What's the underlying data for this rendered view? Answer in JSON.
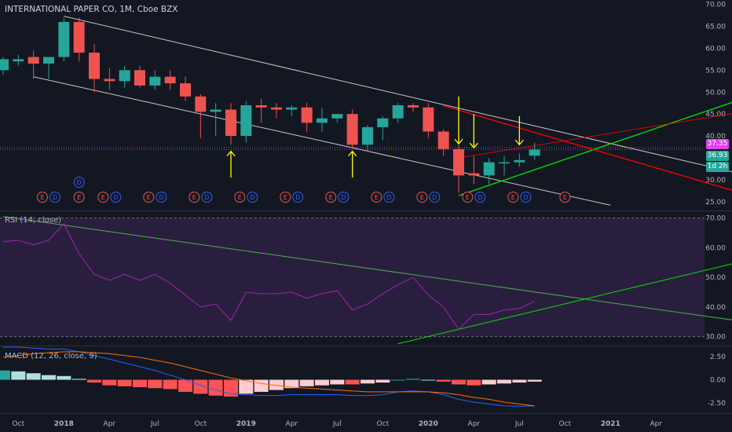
{
  "header": {
    "title": "INTERNATIONAL PAPER CO, 1M, Cboe BZX",
    "rsi_label": "RSI (14, close)",
    "macd_label": "MACD (12, 26, close, 9)"
  },
  "colors": {
    "background": "#131722",
    "up": "#26a69a",
    "down": "#ef5350",
    "rsi_line": "#9c27b0",
    "rsi_band": "#2a1e3e",
    "macd_line": "#2962ff",
    "signal_line": "#ff6d00",
    "trend_white": "#c8c8c8",
    "trend_red": "#ff0000",
    "trend_green": "#00e600",
    "arrow": "#ffff00",
    "price_line": "#e040fb"
  },
  "badges": {
    "current_price": "37.35",
    "last_close": "36.93",
    "countdown": "1d 2h"
  },
  "chart_data": [
    {
      "type": "candlestick",
      "title": "INTERNATIONAL PAPER CO, 1M, Cboe BZX",
      "ylim": [
        23,
        71
      ],
      "y_ticks": [
        "25.00",
        "30.00",
        "35.00",
        "40.00",
        "45.00",
        "50.00",
        "55.00",
        "60.00",
        "65.00",
        "70.00"
      ],
      "x_tick_labels": [
        "Oct",
        "2018",
        "Apr",
        "Jul",
        "Oct",
        "2019",
        "Apr",
        "Jul",
        "Oct",
        "2020",
        "Apr",
        "Jul",
        "Oct",
        "2021",
        "Apr"
      ],
      "dates": [
        "2017-09",
        "2017-10",
        "2017-11",
        "2017-12",
        "2018-01",
        "2018-02",
        "2018-03",
        "2018-04",
        "2018-05",
        "2018-06",
        "2018-07",
        "2018-08",
        "2018-09",
        "2018-10",
        "2018-11",
        "2018-12",
        "2019-01",
        "2019-02",
        "2019-03",
        "2019-04",
        "2019-05",
        "2019-06",
        "2019-07",
        "2019-08",
        "2019-09",
        "2019-10",
        "2019-11",
        "2019-12",
        "2020-01",
        "2020-02",
        "2020-03",
        "2020-04",
        "2020-05",
        "2020-06",
        "2020-07",
        "2020-08"
      ],
      "open": [
        55.0,
        57.0,
        58.0,
        56.5,
        58.0,
        66.0,
        59.0,
        53.0,
        52.5,
        55.0,
        51.5,
        53.5,
        52.0,
        49.0,
        45.5,
        46.0,
        40.0,
        47.0,
        46.5,
        46.0,
        46.5,
        43.0,
        44.0,
        45.0,
        38.0,
        42.0,
        44.0,
        47.0,
        46.5,
        41.0,
        37.0,
        31.5,
        31.0,
        34.0,
        34.0,
        35.5
      ],
      "high": [
        58.0,
        58.5,
        59.5,
        58.0,
        67.0,
        67.0,
        61.0,
        55.5,
        56.0,
        56.0,
        55.0,
        55.0,
        53.5,
        49.5,
        47.5,
        47.5,
        48.0,
        48.5,
        47.5,
        47.0,
        47.5,
        46.5,
        45.0,
        46.0,
        42.5,
        44.5,
        47.5,
        47.5,
        47.5,
        41.5,
        38.0,
        35.5,
        35.0,
        35.5,
        36.0,
        38.5
      ],
      "low": [
        54.0,
        56.0,
        53.0,
        53.0,
        57.0,
        57.0,
        50.0,
        50.5,
        51.0,
        51.0,
        50.5,
        50.5,
        48.0,
        39.5,
        40.0,
        38.0,
        38.5,
        43.0,
        44.0,
        44.5,
        41.0,
        41.0,
        43.0,
        37.0,
        36.5,
        39.0,
        43.0,
        45.5,
        39.5,
        35.5,
        27.0,
        29.0,
        29.0,
        31.0,
        33.0,
        34.5
      ],
      "close": [
        57.5,
        57.5,
        56.5,
        58.0,
        66.0,
        59.0,
        53.0,
        52.5,
        55.0,
        51.5,
        53.5,
        52.0,
        49.0,
        45.5,
        46.0,
        40.0,
        47.0,
        46.5,
        46.0,
        46.5,
        43.0,
        44.0,
        45.0,
        38.0,
        42.0,
        44.0,
        47.0,
        46.5,
        41.0,
        37.0,
        31.0,
        31.0,
        34.0,
        34.0,
        34.5,
        36.9
      ],
      "price_lines": [
        {
          "label": "37.35",
          "value": 37.35
        },
        {
          "label": "36.93",
          "value": 36.93
        }
      ],
      "annotations": {
        "up_arrows": [
          "2018-12",
          "2019-08"
        ],
        "down_arrows": [
          "2020-03",
          "2020-04",
          "2020-07"
        ],
        "events": [
          {
            "date": "2017-12",
            "labels": [
              "E",
              "D"
            ]
          },
          {
            "date": "2018-02",
            "labels": [
              "D"
            ],
            "row": "upper"
          },
          {
            "date": "2018-02",
            "labels": [
              "E"
            ]
          },
          {
            "date": "2018-04",
            "labels": [
              "E",
              "D"
            ]
          },
          {
            "date": "2018-07",
            "labels": [
              "E",
              "D"
            ]
          },
          {
            "date": "2018-10",
            "labels": [
              "E",
              "D"
            ]
          },
          {
            "date": "2019-01",
            "labels": [
              "E",
              "D"
            ]
          },
          {
            "date": "2019-04",
            "labels": [
              "E",
              "D"
            ]
          },
          {
            "date": "2019-07",
            "labels": [
              "E",
              "D"
            ]
          },
          {
            "date": "2019-10",
            "labels": [
              "E",
              "D"
            ]
          },
          {
            "date": "2020-01",
            "labels": [
              "E",
              "D"
            ]
          },
          {
            "date": "2020-04",
            "labels": [
              "E",
              "D"
            ]
          },
          {
            "date": "2020-07",
            "labels": [
              "E",
              "D"
            ]
          },
          {
            "date": "2020-10",
            "labels": [
              "E"
            ]
          }
        ]
      }
    },
    {
      "type": "line",
      "title": "RSI (14, close)",
      "ylim": [
        27,
        72
      ],
      "y_ticks": [
        "30.00",
        "40.00",
        "50.00",
        "60.00",
        "70.00"
      ],
      "bands": [
        30,
        70
      ],
      "dates": [
        "2017-09",
        "2017-10",
        "2017-11",
        "2017-12",
        "2018-01",
        "2018-02",
        "2018-03",
        "2018-04",
        "2018-05",
        "2018-06",
        "2018-07",
        "2018-08",
        "2018-09",
        "2018-10",
        "2018-11",
        "2018-12",
        "2019-01",
        "2019-02",
        "2019-03",
        "2019-04",
        "2019-05",
        "2019-06",
        "2019-07",
        "2019-08",
        "2019-09",
        "2019-10",
        "2019-11",
        "2019-12",
        "2020-01",
        "2020-02",
        "2020-03",
        "2020-04",
        "2020-05",
        "2020-06",
        "2020-07",
        "2020-08"
      ],
      "values": [
        62,
        62.5,
        61,
        62.5,
        68,
        58,
        51,
        49,
        51,
        49,
        51,
        48,
        44,
        40,
        41,
        35.5,
        45,
        44.5,
        44.5,
        45,
        43,
        44.5,
        45.5,
        39,
        41,
        44.5,
        47.5,
        50,
        44,
        40,
        32.5,
        37.5,
        37.5,
        39,
        39.5,
        42
      ]
    },
    {
      "type": "line",
      "title": "MACD (12, 26, close, 9)",
      "ylim": [
        -3.5,
        3.5
      ],
      "y_ticks": [
        "2.50",
        "0.00",
        "-2.50"
      ],
      "dates": [
        "2017-09",
        "2017-10",
        "2017-11",
        "2017-12",
        "2018-01",
        "2018-02",
        "2018-03",
        "2018-04",
        "2018-05",
        "2018-06",
        "2018-07",
        "2018-08",
        "2018-09",
        "2018-10",
        "2018-11",
        "2018-12",
        "2019-01",
        "2019-02",
        "2019-03",
        "2019-04",
        "2019-05",
        "2019-06",
        "2019-07",
        "2019-08",
        "2019-09",
        "2019-10",
        "2019-11",
        "2019-12",
        "2020-01",
        "2020-02",
        "2020-03",
        "2020-04",
        "2020-05",
        "2020-06",
        "2020-07",
        "2020-08"
      ],
      "series": [
        {
          "name": "MACD",
          "values": [
            3.5,
            3.5,
            3.4,
            3.3,
            3.3,
            3.0,
            2.6,
            2.2,
            1.8,
            1.4,
            1.0,
            0.5,
            0.0,
            -0.6,
            -1.1,
            -1.5,
            -1.6,
            -1.7,
            -1.7,
            -1.6,
            -1.6,
            -1.6,
            -1.6,
            -1.7,
            -1.7,
            -1.6,
            -1.3,
            -1.2,
            -1.3,
            -1.6,
            -2.1,
            -2.4,
            -2.6,
            -2.8,
            -2.85,
            -2.8
          ]
        },
        {
          "name": "Signal",
          "values": [
            2.4,
            2.6,
            2.8,
            2.9,
            3.0,
            3.0,
            2.9,
            2.8,
            2.6,
            2.4,
            2.1,
            1.8,
            1.4,
            1.0,
            0.6,
            0.2,
            -0.1,
            -0.4,
            -0.6,
            -0.8,
            -0.9,
            -1.0,
            -1.1,
            -1.2,
            -1.3,
            -1.3,
            -1.3,
            -1.3,
            -1.3,
            -1.4,
            -1.6,
            -1.9,
            -2.1,
            -2.4,
            -2.6,
            -2.8
          ]
        },
        {
          "name": "Histogram",
          "values": [
            1.0,
            0.9,
            0.7,
            0.5,
            0.4,
            0.1,
            -0.3,
            -0.6,
            -0.7,
            -0.8,
            -0.9,
            -1.0,
            -1.3,
            -1.5,
            -1.7,
            -1.8,
            -1.5,
            -1.3,
            -1.1,
            -0.9,
            -0.7,
            -0.6,
            -0.5,
            -0.5,
            -0.4,
            -0.3,
            0.0,
            0.1,
            0.0,
            -0.2,
            -0.5,
            -0.6,
            -0.5,
            -0.4,
            -0.3,
            -0.2
          ]
        }
      ]
    }
  ]
}
